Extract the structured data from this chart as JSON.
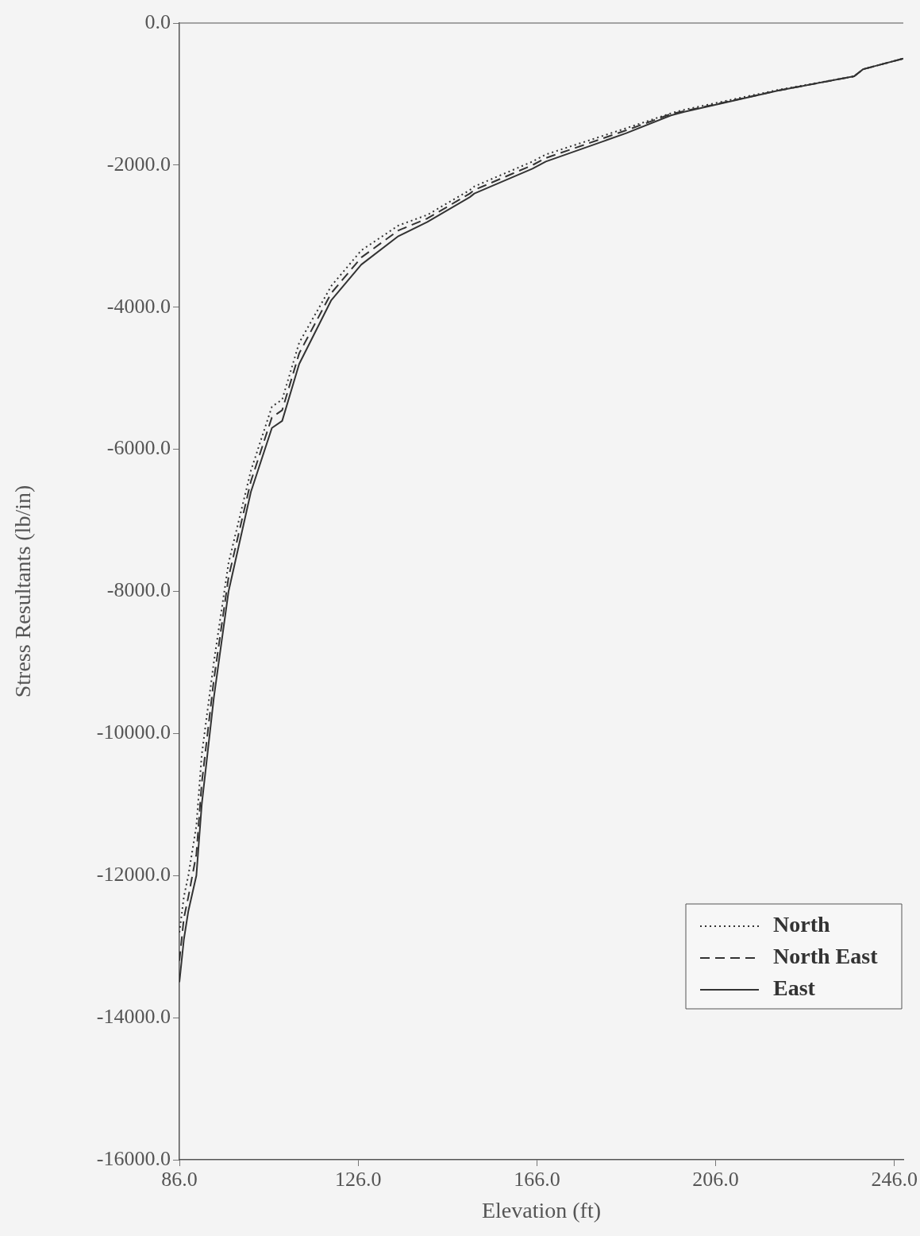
{
  "chart_data": {
    "type": "line",
    "xlabel": "Elevation (ft)",
    "ylabel": "Stress Resultants (lb/in)",
    "x": [
      86,
      87,
      88,
      89.8,
      91,
      93.7,
      97,
      102,
      106.7,
      109,
      112.8,
      120,
      126.7,
      135,
      141.5,
      151,
      152,
      165,
      168,
      186,
      196,
      199,
      220,
      237,
      239,
      248
    ],
    "series": [
      {
        "name": "North",
        "color": "#333333",
        "line_style": "dotted",
        "values": [
          -12800,
          -12300,
          -12000,
          -11300,
          -10300,
          -9000,
          -7600,
          -6300,
          -5400,
          -5300,
          -4500,
          -3700,
          -3200,
          -2850,
          -2700,
          -2350,
          -2300,
          -1950,
          -1850,
          -1480,
          -1270,
          -1220,
          -940,
          -750,
          -650,
          -500
        ]
      },
      {
        "name": "North East",
        "color": "#333333",
        "line_style": "dashed",
        "values": [
          -13200,
          -12600,
          -12300,
          -11700,
          -10700,
          -9250,
          -7800,
          -6450,
          -5550,
          -5450,
          -4650,
          -3800,
          -3300,
          -2920,
          -2750,
          -2400,
          -2350,
          -2000,
          -1900,
          -1510,
          -1280,
          -1240,
          -950,
          -750,
          -650,
          -500
        ]
      },
      {
        "name": "East",
        "color": "#333333",
        "line_style": "solid",
        "values": [
          -13500,
          -12900,
          -12500,
          -12000,
          -11000,
          -9500,
          -8000,
          -6600,
          -5700,
          -5600,
          -4800,
          -3900,
          -3400,
          -3000,
          -2800,
          -2450,
          -2400,
          -2050,
          -1950,
          -1550,
          -1300,
          -1250,
          -950,
          -750,
          -650,
          -500
        ]
      }
    ],
    "xlim": [
      86,
      248
    ],
    "ylim": [
      -16000,
      0
    ],
    "xticks": [
      {
        "value": 86,
        "label": "86.0"
      },
      {
        "value": 126,
        "label": "126.0"
      },
      {
        "value": 166,
        "label": "166.0"
      },
      {
        "value": 206,
        "label": "206.0"
      },
      {
        "value": 246,
        "label": "246.0"
      }
    ],
    "yticks": [
      {
        "value": 0,
        "label": "0.0"
      },
      {
        "value": -2000,
        "label": "-2000.0"
      },
      {
        "value": -4000,
        "label": "-4000.0"
      },
      {
        "value": -6000,
        "label": "-6000.0"
      },
      {
        "value": -8000,
        "label": "-8000.0"
      },
      {
        "value": -10000,
        "label": "-10000.0"
      },
      {
        "value": -12000,
        "label": "-12000.0"
      },
      {
        "value": -14000,
        "label": "-14000.0"
      },
      {
        "value": -16000,
        "label": "-16000.0"
      }
    ],
    "grid": false,
    "legend": "bottom right",
    "marker": "none"
  }
}
